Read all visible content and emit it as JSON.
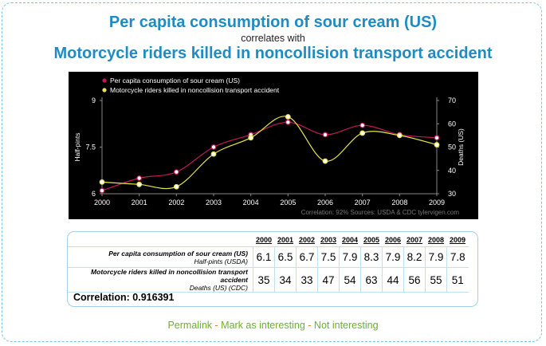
{
  "header": {
    "title_1": "Per capita consumption of sour cream (US)",
    "connector": "correlates with",
    "title_2": "Motorcycle riders killed in noncollision transport accident"
  },
  "chart_data": {
    "type": "line",
    "x": [
      2000,
      2001,
      2002,
      2003,
      2004,
      2005,
      2006,
      2007,
      2008,
      2009
    ],
    "series": [
      {
        "name": "Per capita consumption of sour cream (US)",
        "axis": "left",
        "color": "#c2185b",
        "values": [
          6.1,
          6.5,
          6.7,
          7.5,
          7.9,
          8.3,
          7.9,
          8.2,
          7.9,
          7.8
        ]
      },
      {
        "name": "Motorcycle riders killed in noncollision transport accident",
        "axis": "right",
        "color": "#e8e64b",
        "values": [
          35,
          34,
          33,
          47,
          54,
          63,
          44,
          56,
          55,
          51
        ]
      }
    ],
    "ylabel": "Half-pints",
    "y2label": "Deaths (US)",
    "ylim": [
      6,
      9
    ],
    "y2lim": [
      30,
      70
    ],
    "yticks": [
      "6",
      "7.5",
      "9"
    ],
    "y2ticks": [
      "30",
      "40",
      "50",
      "60",
      "70"
    ],
    "legend": "top-left",
    "footer": "Correlation: 92%    Sources: USDA & CDC    tylervigen.com"
  },
  "table": {
    "years": [
      "2000",
      "2001",
      "2002",
      "2003",
      "2004",
      "2005",
      "2006",
      "2007",
      "2008",
      "2009"
    ],
    "rows": [
      {
        "label": "Per capita consumption of sour cream (US)",
        "unit": "Half-pints (USDA)",
        "values": [
          "6.1",
          "6.5",
          "6.7",
          "7.5",
          "7.9",
          "8.3",
          "7.9",
          "8.2",
          "7.9",
          "7.8"
        ]
      },
      {
        "label": "Motorcycle riders killed in noncollision transport accident",
        "unit": "Deaths (US) (CDC)",
        "values": [
          "35",
          "34",
          "33",
          "47",
          "54",
          "63",
          "44",
          "56",
          "55",
          "51"
        ]
      }
    ],
    "correlation": "Correlation: 0.916391"
  },
  "links": {
    "permalink": "Permalink",
    "mark": "Mark as interesting",
    "not": "Not interesting",
    "sep": "-"
  }
}
